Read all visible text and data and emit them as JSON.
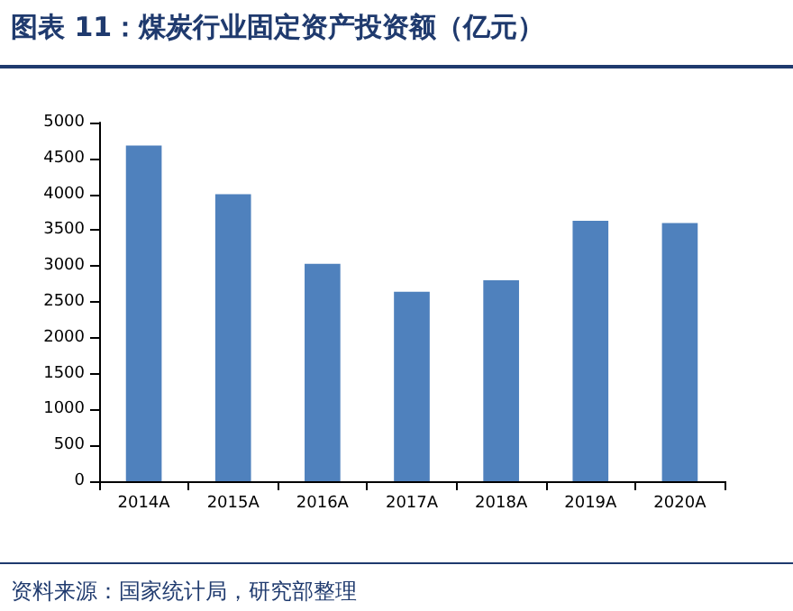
{
  "chart_data": {
    "type": "bar",
    "title": "图表 11：煤炭行业固定资产投资额（亿元）",
    "categories": [
      "2014A",
      "2015A",
      "2016A",
      "2017A",
      "2018A",
      "2019A",
      "2020A"
    ],
    "values": [
      4680,
      4000,
      3030,
      2640,
      2800,
      3630,
      3600
    ],
    "color": "#4f81bd",
    "ylim": [
      0,
      5000
    ],
    "yticks": [
      0,
      500,
      1000,
      1500,
      2000,
      2500,
      3000,
      3500,
      4000,
      4500,
      5000
    ],
    "grid": false,
    "annotations": [
      "资料来源：国家统计局，研究部整理"
    ]
  }
}
